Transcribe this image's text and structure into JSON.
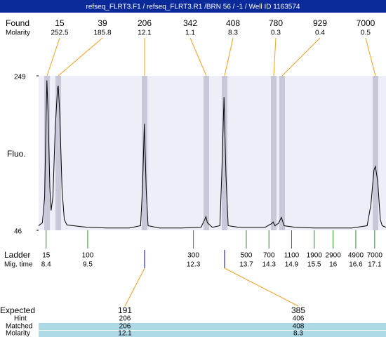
{
  "header": {
    "title": "refseq_FLRT3.F1 / refseq_FLRT3.R1 /BRN 56 / -1 / Well ID 1163574"
  },
  "found": {
    "label": "Found",
    "sizes": [
      15,
      39,
      206,
      342,
      408,
      780,
      929,
      7000
    ],
    "molarity_label": "Molarity",
    "molarity": [
      252.5,
      185.8,
      12.1,
      1.1,
      8.3,
      0.3,
      0.4,
      0.5
    ]
  },
  "chart_data": {
    "type": "line",
    "y_label": "Fluo.",
    "ylim": [
      46,
      249
    ],
    "yticks": [
      46,
      249
    ],
    "xlim": [
      8.2,
      17.4
    ],
    "color": "#000000",
    "x": [
      8.2,
      8.3,
      8.36,
      8.4,
      8.42,
      8.45,
      8.5,
      8.53,
      8.58,
      8.64,
      8.7,
      8.72,
      8.76,
      8.82,
      8.88,
      8.95,
      9.3,
      9.5,
      10.0,
      10.6,
      10.9,
      10.95,
      11.0,
      11.05,
      11.1,
      11.4,
      12.0,
      12.5,
      12.6,
      12.63,
      12.67,
      12.8,
      13.0,
      13.05,
      13.11,
      13.16,
      13.22,
      13.5,
      13.8,
      14.2,
      14.38,
      14.41,
      14.46,
      14.55,
      14.63,
      14.7,
      15.0,
      15.5,
      16.0,
      16.5,
      16.9,
      17.0,
      17.08,
      17.12,
      17.18,
      17.25,
      17.3,
      17.4
    ],
    "values": [
      52,
      56,
      90,
      200,
      243,
      200,
      100,
      72,
      90,
      180,
      232,
      236,
      200,
      100,
      60,
      53,
      51,
      50,
      49,
      49,
      52,
      100,
      186,
      100,
      52,
      49,
      49,
      50,
      60,
      64,
      56,
      50,
      52,
      120,
      221,
      120,
      52,
      50,
      50,
      50,
      55,
      57,
      52,
      55,
      63,
      52,
      50,
      49,
      49,
      49,
      52,
      80,
      125,
      130,
      110,
      60,
      52,
      50
    ]
  },
  "ladder": {
    "label": "Ladder",
    "time_label": "Mig. time",
    "sizes": [
      15,
      100,
      300,
      500,
      700,
      1100,
      1900,
      2900,
      4900,
      7000
    ],
    "times": [
      8.4,
      9.5,
      12.3,
      13.7,
      14.3,
      14.9,
      15.5,
      16,
      16.6,
      17.1
    ]
  },
  "expected": {
    "label": "Expected",
    "values": [
      191,
      385
    ],
    "hint_label": "Hint",
    "hint": [
      206,
      406
    ],
    "matched_label": "Matched",
    "matched": [
      206,
      408
    ],
    "molarity_label": "Molarity",
    "molarity": [
      12.1,
      8.3
    ]
  }
}
